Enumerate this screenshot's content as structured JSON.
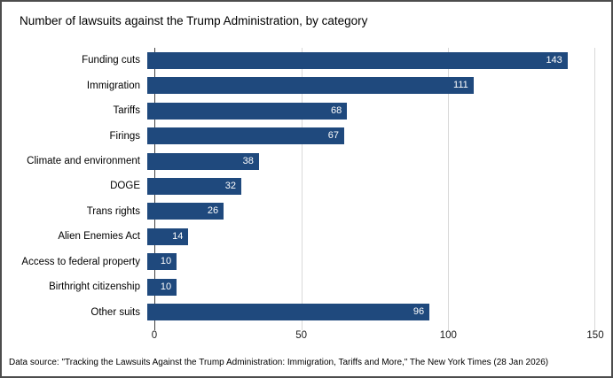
{
  "title": "Number of lawsuits against the Trump Administration, by category",
  "footer": "Data source: \"Tracking the Lawsuits Against the Trump Administration: Immigration, Tariffs and More,\" The New York Times (28 Jan 2026)",
  "colors": {
    "bar": "#1f497d",
    "gridline": "#d9d9d9",
    "axis_line": "#404040",
    "value_label": "#ffffff",
    "frame_border": "#4c4c4c"
  },
  "chart_data": {
    "type": "bar",
    "orientation": "horizontal",
    "title": "Number of lawsuits against the Trump Administration, by category",
    "categories": [
      "Funding cuts",
      "Immigration",
      "Tariffs",
      "Firings",
      "Climate and environment",
      "DOGE",
      "Trans rights",
      "Alien Enemies Act",
      "Access to federal property",
      "Birthright citizenship",
      "Other suits"
    ],
    "values": [
      143,
      111,
      68,
      67,
      38,
      32,
      26,
      14,
      10,
      10,
      96
    ],
    "xlabel": "",
    "ylabel": "",
    "xlim": [
      0,
      150
    ],
    "xticks": [
      0,
      50,
      100,
      150
    ],
    "grid": true,
    "legend": false,
    "value_labels": "inside-end"
  }
}
